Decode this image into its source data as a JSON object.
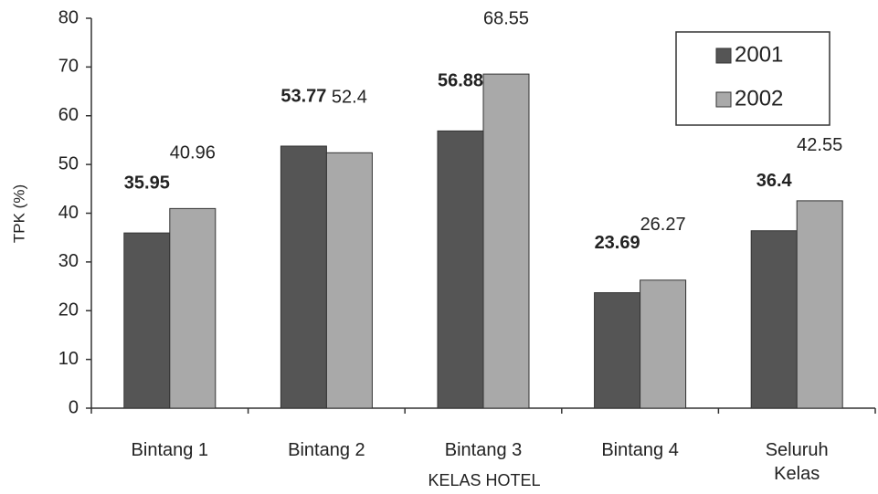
{
  "chart_data": {
    "type": "bar",
    "x_label": "KELAS HOTEL",
    "y_label": "TPK (%)",
    "categories": [
      "Bintang 1",
      "Bintang 2",
      "Bintang 3",
      "Bintang 4",
      "Seluruh Kelas"
    ],
    "series": [
      {
        "name": "2001",
        "color": "#555555",
        "values": [
          35.95,
          53.77,
          56.88,
          23.69,
          36.4
        ]
      },
      {
        "name": "2002",
        "color": "#a9a9a9",
        "values": [
          40.96,
          52.4,
          68.55,
          26.27,
          42.55
        ]
      }
    ],
    "ylim": [
      0,
      80
    ],
    "yticks": [
      0,
      10,
      20,
      30,
      40,
      50,
      60,
      70,
      80
    ],
    "legend": "top-right"
  }
}
